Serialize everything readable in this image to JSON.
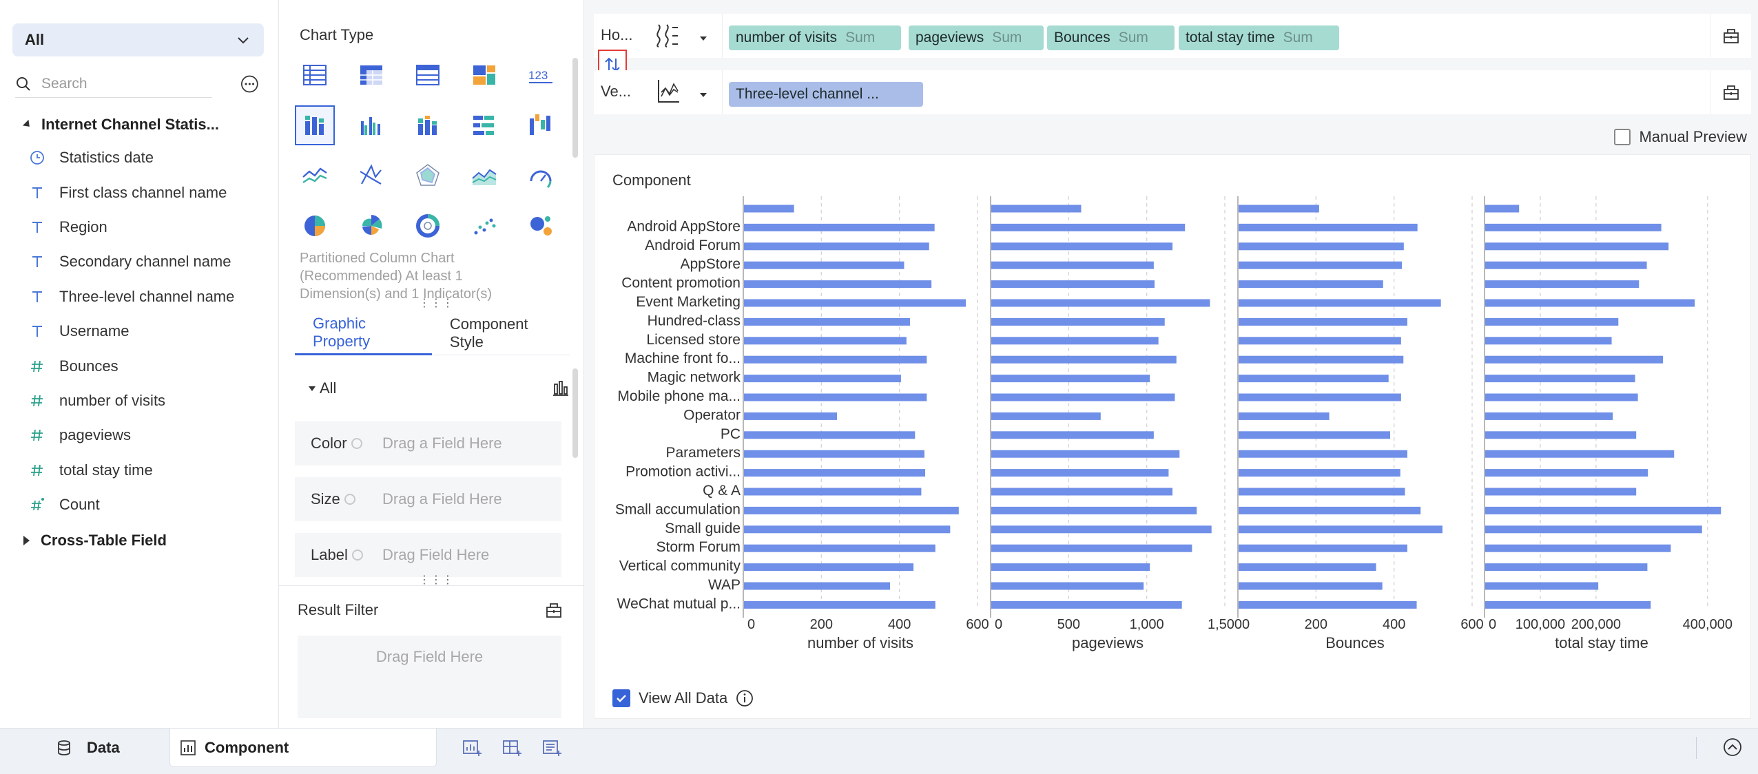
{
  "left_panel": {
    "dataset_select": "All",
    "search_placeholder": "Search",
    "table_name": "Internet Channel Statis...",
    "fields": [
      {
        "type": "date",
        "name": "Statistics date"
      },
      {
        "type": "text",
        "name": "First class channel name"
      },
      {
        "type": "text",
        "name": "Region"
      },
      {
        "type": "text",
        "name": "Secondary channel name"
      },
      {
        "type": "text",
        "name": "Three-level channel name"
      },
      {
        "type": "text",
        "name": "Username"
      },
      {
        "type": "number",
        "name": "Bounces"
      },
      {
        "type": "number",
        "name": "number of visits"
      },
      {
        "type": "number",
        "name": "pageviews"
      },
      {
        "type": "number",
        "name": "total stay time"
      },
      {
        "type": "number-calc",
        "name": "Count"
      }
    ],
    "cross_table": "Cross-Table Field"
  },
  "mid_panel": {
    "title": "Chart Type",
    "chart_types": [
      "table-icon",
      "cross-table-icon",
      "detail-table-icon",
      "treemap-color-icon",
      "number-123-icon",
      "partitioned-column-icon",
      "grouped-column-icon",
      "stacked-column-icon",
      "bar-list-icon",
      "waterfall-icon",
      "line-icon",
      "radar-line-icon",
      "radar-icon",
      "area-icon",
      "gauge-icon",
      "pie-icon",
      "rose-pie-icon",
      "ring-pie-icon",
      "scatter-icon",
      "bubble-icon"
    ],
    "selected_index": 5,
    "description": "Partitioned Column Chart (Recommended) At least 1 Dimension(s) and 1 Indicator(s)",
    "number_label": "123",
    "tabs": [
      "Graphic Property",
      "Component Style"
    ],
    "all_label": "All",
    "props": [
      {
        "label": "Color",
        "placeholder": "Drag a Field Here"
      },
      {
        "label": "Size",
        "placeholder": "Drag a Field Here"
      },
      {
        "label": "Label",
        "placeholder": "Drag Field Here"
      }
    ],
    "result_filter": "Result Filter",
    "result_drop": "Drag Field Here"
  },
  "shelves": {
    "horizontal_label": "Ho...",
    "vertical_label": "Ve...",
    "horizontal_pills": [
      {
        "name": "number of visits",
        "agg": "Sum"
      },
      {
        "name": "pageviews",
        "agg": "Sum"
      },
      {
        "name": "Bounces",
        "agg": "Sum"
      },
      {
        "name": "total stay time",
        "agg": "Sum"
      }
    ],
    "vertical_pills": [
      {
        "name": "Three-level channel ...",
        "agg": ""
      }
    ]
  },
  "manual_preview": "Manual Preview",
  "component_title": "Component",
  "view_all": "View All Data",
  "chart_data": {
    "type": "bar",
    "orientation": "horizontal",
    "categories": [
      "",
      "Android AppStore",
      "Android Forum",
      "AppStore",
      "Content promotion",
      "Event Marketing",
      "Hundred-class",
      "Licensed store",
      "Machine front fo...",
      "Magic network",
      "Mobile phone ma...",
      "Operator",
      "PC",
      "Parameters",
      "Promotion activi...",
      "Q & A",
      "Small accumulation",
      "Small guide",
      "Storm Forum",
      "Vertical community",
      "WAP",
      "WeChat mutual p..."
    ],
    "series": [
      {
        "name": "number of visits",
        "xlabel": "number of visits",
        "xlim": [
          0,
          600
        ],
        "ticks": [
          0,
          200,
          400,
          600
        ],
        "tick_labels": [
          "0",
          "200",
          "400",
          "600"
        ],
        "values": [
          130,
          490,
          476,
          412,
          482,
          570,
          427,
          418,
          470,
          404,
          470,
          240,
          440,
          464,
          466,
          456,
          552,
          530,
          492,
          436,
          376,
          492
        ]
      },
      {
        "name": "pageviews",
        "xlabel": "pageviews",
        "xlim": [
          0,
          1500
        ],
        "ticks": [
          0,
          500,
          1000,
          1500
        ],
        "tick_labels": [
          "0",
          "500",
          "1,000",
          "1,500"
        ],
        "values": [
          580,
          1245,
          1165,
          1045,
          1050,
          1405,
          1115,
          1075,
          1190,
          1020,
          1180,
          705,
          1045,
          1210,
          1140,
          1165,
          1320,
          1415,
          1290,
          1020,
          980,
          1225
        ]
      },
      {
        "name": "Bounces",
        "xlabel": "Bounces",
        "xlim": [
          0,
          600
        ],
        "ticks": [
          0,
          200,
          400,
          600
        ],
        "tick_labels": [
          "0",
          "200",
          "400",
          "600"
        ],
        "values": [
          208,
          460,
          425,
          420,
          372,
          520,
          434,
          418,
          424,
          386,
          418,
          234,
          390,
          434,
          416,
          428,
          468,
          524,
          434,
          354,
          370,
          458
        ]
      },
      {
        "name": "total stay time",
        "xlabel": "total stay time",
        "xlim": [
          0,
          420000
        ],
        "ticks": [
          0,
          100000,
          200000,
          400000
        ],
        "tick_labels": [
          "0",
          "100,000",
          "200,000",
          "400,000"
        ],
        "values": [
          62000,
          317000,
          330000,
          291000,
          277000,
          377000,
          240000,
          228000,
          320000,
          270000,
          275000,
          230000,
          272000,
          340000,
          293000,
          272000,
          424000,
          390000,
          334000,
          292000,
          204000,
          298000
        ]
      }
    ],
    "bar_color": "#6f8fe8",
    "grid": true
  },
  "bottom_bar": {
    "tabs": [
      "Data",
      "Component"
    ],
    "active": "Component"
  }
}
